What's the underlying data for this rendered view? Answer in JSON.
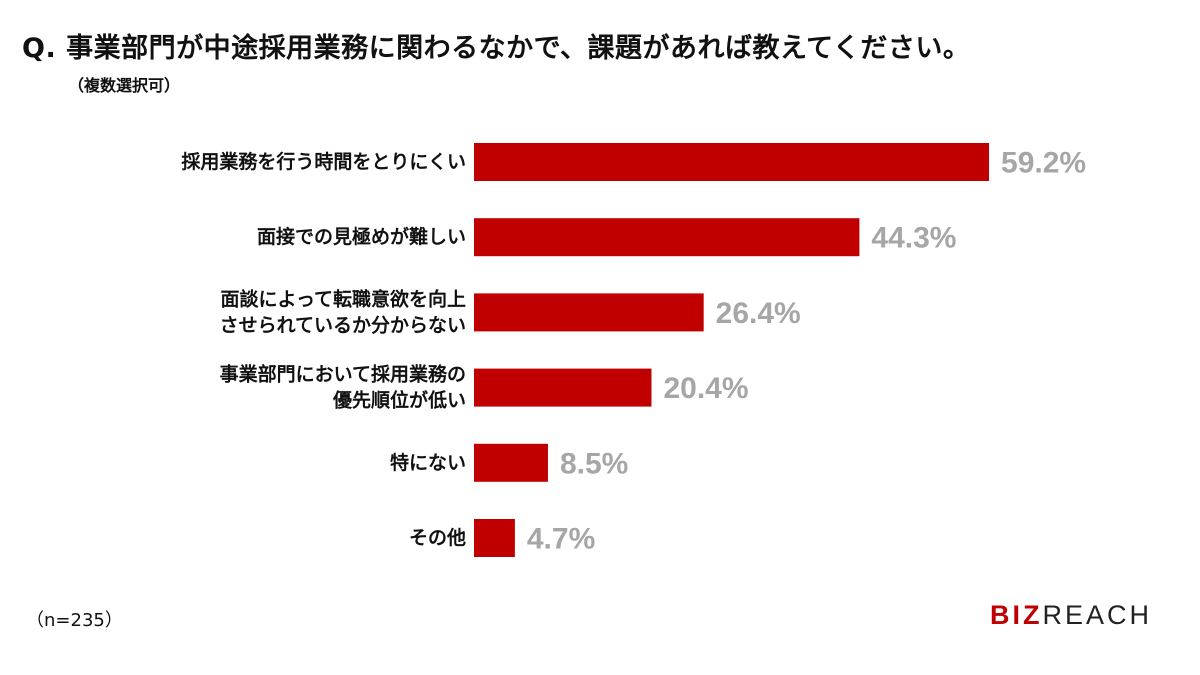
{
  "question": "Q. 事業部門が中途採用業務に関わるなかで、課題があれば教えてください。",
  "note": "（複数選択可）",
  "footnote": "（n=235）",
  "logo": {
    "part1": "BIZ",
    "part2": "REACH",
    "color1": "#c00000",
    "color2": "#222222"
  },
  "chart_data": {
    "type": "bar",
    "orientation": "horizontal",
    "title": "Q. 事業部門が中途採用業務に関わるなかで、課題があれば教えてください。",
    "categories": [
      [
        "採用業務を行う時間をとりにくい"
      ],
      [
        "面接での見極めが難しい"
      ],
      [
        "面談によって転職意欲を向上",
        "させられているか分からない"
      ],
      [
        "事業部門において採用業務の",
        "優先順位が低い"
      ],
      [
        "特にない"
      ],
      [
        "その他"
      ]
    ],
    "values": [
      59.2,
      44.3,
      26.4,
      20.4,
      8.5,
      4.7
    ],
    "value_labels": [
      "59.2%",
      "44.3%",
      "26.4%",
      "20.4%",
      "8.5%",
      "4.7%"
    ],
    "unit": "%",
    "bar_color": "#c00000",
    "value_label_color": "#a6a6a6",
    "grid": false,
    "legend": "none"
  }
}
